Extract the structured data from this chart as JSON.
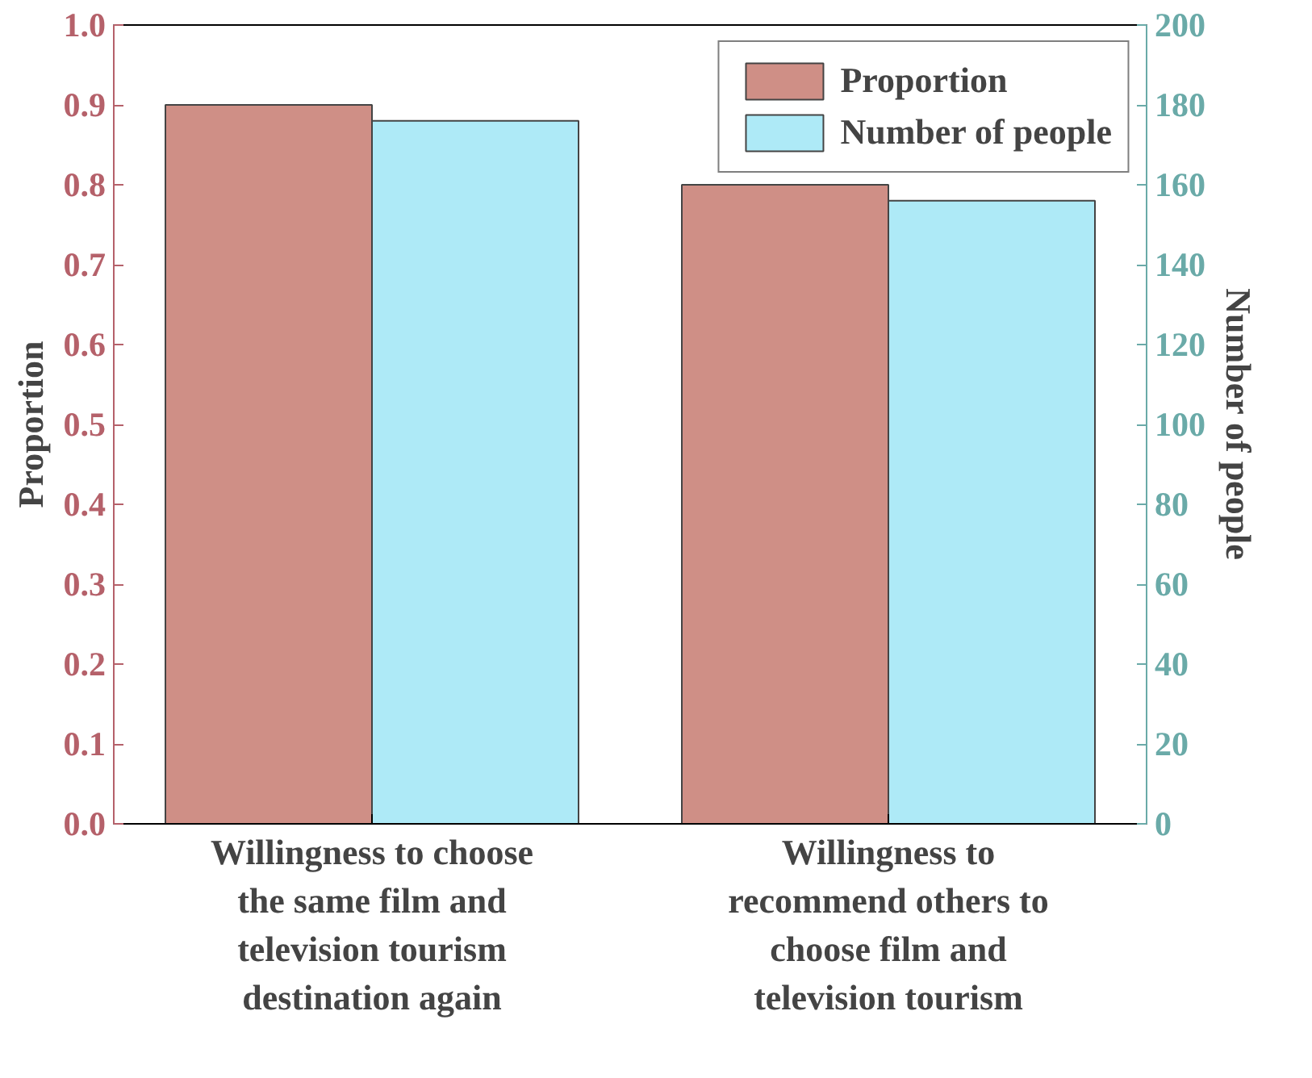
{
  "chart_data": {
    "type": "bar",
    "categories": [
      "Willingness to choose the same film and television tourism destination again",
      "Willingness to recommend others to choose film and television tourism"
    ],
    "ylabel": "Proportion",
    "y2label": "Number of people",
    "series": [
      {
        "name": "Proportion",
        "color": "#cf8f86",
        "values": [
          0.9,
          0.8
        ]
      },
      {
        "name": "Number of people",
        "color": "#aeeaf7",
        "values": [
          176,
          156
        ],
        "axis": "y2"
      }
    ],
    "ylim": [
      0,
      1
    ],
    "yticks": [
      {
        "value": 0,
        "label": "0.0"
      },
      0.1,
      0.2,
      0.3,
      0.4,
      0.5,
      0.6,
      0.7,
      0.8,
      0.9,
      {
        "value": 1,
        "label": "1.0"
      }
    ],
    "y2lim": [
      0,
      200
    ],
    "y2ticks": [
      0,
      20,
      40,
      60,
      80,
      100,
      120,
      140,
      160,
      180,
      200
    ],
    "grid": false,
    "legend": "top right"
  }
}
